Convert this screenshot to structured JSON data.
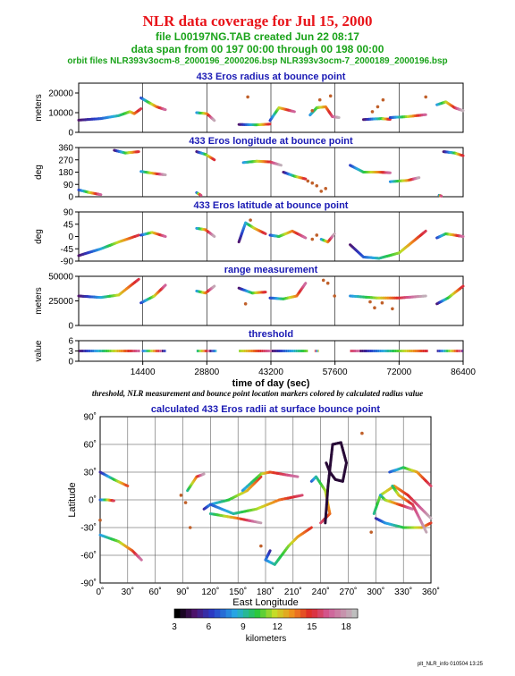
{
  "header": {
    "title": "NLR data coverage for Jul 15, 2000",
    "file_line": "file L00197NG.TAB created Jun 22 08:17",
    "span_line": "data span from 00 197 00:00 through 00 198 00:00",
    "orbit_line": "orbit files NLR393v3ocm-8_2000196_2000206.bsp NLR393v3ocm-7_2000189_2000196.bsp"
  },
  "colors": {
    "title": "#e8141a",
    "subtitle": "#1aa31a",
    "panel_title": "#1a1ab4"
  },
  "footer_stamp": "plt_NLR_info 010504 13:25",
  "caption": "threshold, NLR measurement and bounce point location markers colored by calculated radius value",
  "chart_data": [
    {
      "type": "scatter",
      "title": "433 Eros radius at bounce point",
      "ylabel": "meters",
      "xlim": [
        0,
        86400
      ],
      "ylim": [
        0,
        25000
      ],
      "yticks": [
        0,
        10000,
        20000
      ],
      "series": [
        {
          "x": [
            0,
            5000,
            9000,
            11500,
            12500,
            14000
          ],
          "y": [
            6200,
            7000,
            8500,
            10500,
            9500,
            12000
          ]
        },
        {
          "x": [
            14000,
            15500,
            17500,
            19500
          ],
          "y": [
            17500,
            15500,
            13000,
            11500
          ]
        },
        {
          "x": [
            26500,
            28800,
            30500
          ],
          "y": [
            10000,
            9500,
            6000
          ]
        },
        {
          "x": [
            36000,
            40000,
            43000
          ],
          "y": [
            4000,
            3800,
            4200
          ]
        },
        {
          "x": [
            43000,
            45000,
            48500
          ],
          "y": [
            6000,
            12500,
            10500
          ]
        },
        {
          "x": [
            52000,
            53500,
            55500,
            57000,
            58500
          ],
          "y": [
            8800,
            12500,
            13000,
            8000,
            7500
          ]
        },
        {
          "x": [
            64000,
            68000,
            70000
          ],
          "y": [
            6500,
            7000,
            6600
          ]
        },
        {
          "x": [
            70000,
            74000,
            78000
          ],
          "y": [
            7500,
            8000,
            9000
          ]
        },
        {
          "x": [
            80500,
            82500,
            84500,
            86400
          ],
          "y": [
            14000,
            15500,
            12500,
            11000
          ]
        }
      ],
      "points": [
        {
          "x": 38000,
          "y": 18000
        },
        {
          "x": 52500,
          "y": 11000
        },
        {
          "x": 54200,
          "y": 16500
        },
        {
          "x": 56600,
          "y": 18500
        },
        {
          "x": 66000,
          "y": 10500
        },
        {
          "x": 67200,
          "y": 13000
        },
        {
          "x": 68400,
          "y": 16500
        },
        {
          "x": 78000,
          "y": 18000
        }
      ]
    },
    {
      "type": "scatter",
      "title": "433 Eros longitude at bounce point",
      "ylabel": "deg",
      "xlim": [
        0,
        86400
      ],
      "ylim": [
        0,
        360
      ],
      "yticks": [
        0,
        90,
        180,
        270,
        360
      ],
      "series": [
        {
          "x": [
            8000,
            10500,
            13500
          ],
          "y": [
            340,
            320,
            330
          ]
        },
        {
          "x": [
            0,
            2500,
            5000
          ],
          "y": [
            50,
            30,
            15
          ]
        },
        {
          "x": [
            14000,
            17000,
            19500
          ],
          "y": [
            185,
            170,
            160
          ]
        },
        {
          "x": [
            26500,
            28500,
            30500
          ],
          "y": [
            330,
            310,
            270
          ]
        },
        {
          "x": [
            26500,
            27500
          ],
          "y": [
            30,
            10
          ]
        },
        {
          "x": [
            37000,
            40000,
            43000,
            45500
          ],
          "y": [
            250,
            260,
            255,
            230
          ]
        },
        {
          "x": [
            46000,
            48500,
            51000
          ],
          "y": [
            180,
            150,
            130
          ]
        },
        {
          "x": [
            61000,
            64000,
            67500,
            70000
          ],
          "y": [
            230,
            180,
            180,
            175
          ]
        },
        {
          "x": [
            70000,
            74000,
            76500
          ],
          "y": [
            110,
            120,
            140
          ]
        },
        {
          "x": [
            82000,
            84500,
            86400
          ],
          "y": [
            330,
            320,
            300
          ]
        },
        {
          "x": [
            81000,
            81500
          ],
          "y": [
            10,
            5
          ]
        }
      ],
      "points": [
        {
          "x": 51500,
          "y": 115
        },
        {
          "x": 52500,
          "y": 100
        },
        {
          "x": 53500,
          "y": 80
        },
        {
          "x": 54500,
          "y": 40
        },
        {
          "x": 55500,
          "y": 60
        }
      ]
    },
    {
      "type": "scatter",
      "title": "433 Eros latitude at bounce point",
      "ylabel": "deg",
      "xlim": [
        0,
        86400
      ],
      "ylim": [
        -90,
        90
      ],
      "yticks": [
        -90,
        -45,
        0,
        45,
        90
      ],
      "series": [
        {
          "x": [
            0,
            5000,
            9000,
            13500
          ],
          "y": [
            -70,
            -45,
            -20,
            5
          ]
        },
        {
          "x": [
            14000,
            16500,
            19500
          ],
          "y": [
            5,
            15,
            0
          ]
        },
        {
          "x": [
            26500,
            28500,
            30500
          ],
          "y": [
            30,
            25,
            0
          ]
        },
        {
          "x": [
            36000,
            37500,
            39500,
            42000
          ],
          "y": [
            -20,
            50,
            30,
            10
          ]
        },
        {
          "x": [
            43000,
            45000,
            48000,
            51000
          ],
          "y": [
            5,
            0,
            20,
            -5
          ]
        },
        {
          "x": [
            54500,
            56000,
            57500
          ],
          "y": [
            -10,
            -20,
            10
          ]
        },
        {
          "x": [
            61000,
            64000,
            67500,
            72000,
            75000,
            78000
          ],
          "y": [
            -30,
            -75,
            -80,
            -60,
            -20,
            20
          ]
        },
        {
          "x": [
            80500,
            82500,
            84500,
            86400
          ],
          "y": [
            -5,
            10,
            5,
            0
          ]
        }
      ],
      "points": [
        {
          "x": 38600,
          "y": 60
        },
        {
          "x": 52500,
          "y": -10
        },
        {
          "x": 53500,
          "y": 5
        }
      ]
    },
    {
      "type": "scatter",
      "title": "range measurement",
      "ylabel": "meters",
      "xlim": [
        0,
        86400
      ],
      "ylim": [
        0,
        50000
      ],
      "yticks": [
        0,
        25000,
        50000
      ],
      "series": [
        {
          "x": [
            0,
            5000,
            9000,
            13500
          ],
          "y": [
            30000,
            28500,
            31000,
            47000
          ]
        },
        {
          "x": [
            14000,
            17000,
            19500
          ],
          "y": [
            23000,
            30000,
            41000
          ]
        },
        {
          "x": [
            26500,
            28500,
            30500
          ],
          "y": [
            35000,
            33000,
            40000
          ]
        },
        {
          "x": [
            36000,
            39000,
            42000
          ],
          "y": [
            38000,
            33000,
            34000
          ]
        },
        {
          "x": [
            43000,
            46000,
            49000,
            51000
          ],
          "y": [
            28000,
            27000,
            30000,
            43000
          ]
        },
        {
          "x": [
            61000,
            67000,
            72000,
            78000
          ],
          "y": [
            30000,
            28000,
            28000,
            30000
          ]
        },
        {
          "x": [
            80500,
            83000,
            86400
          ],
          "y": [
            22000,
            28000,
            40000
          ]
        }
      ],
      "points": [
        {
          "x": 37500,
          "y": 22000
        },
        {
          "x": 55000,
          "y": 46000
        },
        {
          "x": 56000,
          "y": 43000
        },
        {
          "x": 57500,
          "y": 30000
        },
        {
          "x": 65500,
          "y": 24000
        },
        {
          "x": 66500,
          "y": 18000
        },
        {
          "x": 68200,
          "y": 23000
        },
        {
          "x": 70500,
          "y": 17000
        }
      ]
    },
    {
      "type": "line",
      "title": "threshold",
      "ylabel": "value",
      "xlabel": "time of day (sec)",
      "xlim": [
        0,
        86400
      ],
      "ylim": [
        0,
        6
      ],
      "yticks": [
        0,
        3,
        6
      ],
      "xticks": [
        14400,
        28800,
        43200,
        57600,
        72000,
        86400
      ],
      "segments": [
        [
          0,
          13800
        ],
        [
          14200,
          19600
        ],
        [
          26500,
          31000
        ],
        [
          36000,
          51500
        ],
        [
          53000,
          54000
        ],
        [
          61000,
          78500
        ],
        [
          80500,
          86400
        ]
      ],
      "value": 3
    },
    {
      "type": "scatter",
      "title": "calculated 433 Eros radii at surface bounce point",
      "xlabel": "East Longitude",
      "ylabel": "Latitude",
      "xlim": [
        0,
        360
      ],
      "ylim": [
        -90,
        90
      ],
      "xticks": [
        "0˚",
        "30˚",
        "60˚",
        "90˚",
        "120˚",
        "150˚",
        "180˚",
        "210˚",
        "240˚",
        "270˚",
        "300˚",
        "330˚",
        "360˚"
      ],
      "yticks": [
        "-90˚",
        "-60˚",
        "-30˚",
        "0˚",
        "30˚",
        "60˚",
        "90˚"
      ],
      "series": [
        {
          "x": [
            0,
            15,
            30
          ],
          "y": [
            30,
            22,
            15
          ]
        },
        {
          "x": [
            0,
            8,
            15
          ],
          "y": [
            0,
            0,
            -1
          ]
        },
        {
          "x": [
            0,
            20,
            35,
            45
          ],
          "y": [
            -38,
            -45,
            -55,
            -65
          ]
        },
        {
          "x": [
            95,
            105,
            113
          ],
          "y": [
            10,
            25,
            28
          ]
        },
        {
          "x": [
            113,
            120,
            140,
            160,
            175
          ],
          "y": [
            -10,
            -5,
            0,
            10,
            25
          ]
        },
        {
          "x": [
            120,
            145,
            170,
            195,
            220
          ],
          "y": [
            -5,
            -15,
            -10,
            0,
            5
          ]
        },
        {
          "x": [
            155,
            175,
            185,
            215
          ],
          "y": [
            10,
            28,
            30,
            25
          ]
        },
        {
          "x": [
            120,
            150,
            175
          ],
          "y": [
            -15,
            -20,
            -25
          ]
        },
        {
          "x": [
            185,
            180,
            190,
            205,
            215,
            230
          ],
          "y": [
            -55,
            -65,
            -70,
            -50,
            -40,
            -30
          ]
        },
        {
          "x": [
            230,
            235,
            245,
            250,
            240
          ],
          "y": [
            20,
            25,
            10,
            -15,
            -25
          ]
        },
        {
          "x": [
            245,
            248,
            253,
            262,
            268,
            264,
            256,
            250,
            246
          ],
          "y": [
            -25,
            15,
            60,
            62,
            40,
            20,
            22,
            30,
            40
          ]
        },
        {
          "x": [
            298,
            305,
            320,
            335,
            350,
            360
          ],
          "y": [
            -15,
            5,
            15,
            5,
            -10,
            -20
          ]
        },
        {
          "x": [
            300,
            310,
            330,
            350,
            360
          ],
          "y": [
            -20,
            -25,
            -30,
            -30,
            -25
          ]
        },
        {
          "x": [
            315,
            330,
            345,
            360
          ],
          "y": [
            30,
            35,
            30,
            15
          ]
        },
        {
          "x": [
            305,
            310,
            325,
            340
          ],
          "y": [
            5,
            0,
            -5,
            -10
          ]
        },
        {
          "x": [
            318,
            325,
            340,
            355
          ],
          "y": [
            15,
            5,
            -5,
            -35
          ]
        }
      ],
      "points": [
        {
          "x": 88,
          "y": 5
        },
        {
          "x": 93,
          "y": -3
        },
        {
          "x": 98,
          "y": -30
        },
        {
          "x": 285,
          "y": 72
        },
        {
          "x": 295,
          "y": -35
        },
        {
          "x": 175,
          "y": -50
        },
        {
          "x": 0,
          "y": -22
        }
      ]
    },
    {
      "type": "heatmap",
      "title": "colorbar",
      "xlabel": "kilometers",
      "xlim": [
        3,
        19
      ],
      "xticks": [
        3,
        6,
        9,
        12,
        15,
        18
      ]
    }
  ]
}
